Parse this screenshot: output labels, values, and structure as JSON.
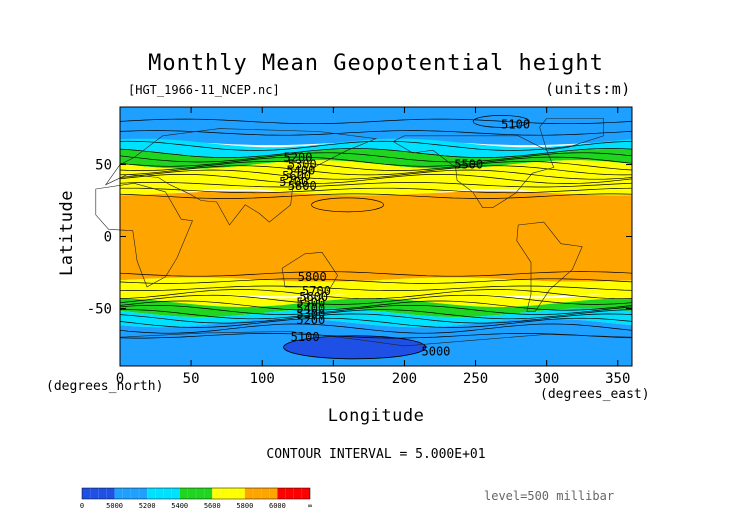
{
  "figure": {
    "title": "Monthly Mean Geopotential height",
    "file_label": "[HGT_1966-11_NCEP.nc]",
    "units_label": "(units:m)",
    "xlabel": "Longitude",
    "ylabel": "Latitude",
    "x_units_label": "(degrees_east)",
    "y_units_label": "(degrees_north)",
    "contour_interval_label": "CONTOUR INTERVAL = 5.000E+01",
    "level_label": "level=500 millibar"
  },
  "chart_data": {
    "type": "heatmap",
    "title": "Monthly Mean Geopotential height",
    "xlabel": "Longitude",
    "ylabel": "Latitude",
    "xlim": [
      0,
      360
    ],
    "ylim": [
      -90,
      90
    ],
    "x_ticks": [
      0,
      50,
      100,
      150,
      200,
      250,
      300,
      350
    ],
    "y_ticks": [
      50,
      0,
      -50
    ],
    "bands": [
      {
        "lat_top": 90,
        "lat_bottom": 65,
        "color": "#1da0ff"
      },
      {
        "lat_top": 65,
        "lat_bottom": 58,
        "color": "#00e0ff"
      },
      {
        "lat_top": 58,
        "lat_bottom": 50,
        "color": "#1fd51f"
      },
      {
        "lat_top": 50,
        "lat_bottom": 38,
        "color": "#ffff00"
      },
      {
        "lat_top": 38,
        "lat_bottom": 30,
        "color": "#ffff00"
      },
      {
        "lat_top": 30,
        "lat_bottom": -30,
        "color": "#ffa500"
      },
      {
        "lat_top": -30,
        "lat_bottom": -40,
        "color": "#ffff00"
      },
      {
        "lat_top": -40,
        "lat_bottom": -46,
        "color": "#ffff00"
      },
      {
        "lat_top": -46,
        "lat_bottom": -53,
        "color": "#1fd51f"
      },
      {
        "lat_top": -53,
        "lat_bottom": -60,
        "color": "#00e0ff"
      },
      {
        "lat_top": -60,
        "lat_bottom": -90,
        "color": "#1da0ff"
      }
    ],
    "low_region": {
      "lon_center": 165,
      "lat_center": -77,
      "lon_radius": 50,
      "lat_radius": 8,
      "color": "#1e50e6"
    },
    "contour_labels": [
      {
        "text": "5200",
        "lon": 115,
        "lat": 55
      },
      {
        "text": "5300",
        "lon": 118,
        "lat": 50
      },
      {
        "text": "5400",
        "lon": 117,
        "lat": 46
      },
      {
        "text": "5500",
        "lon": 235,
        "lat": 50
      },
      {
        "text": "5600",
        "lon": 114,
        "lat": 42
      },
      {
        "text": "5700",
        "lon": 112,
        "lat": 38
      },
      {
        "text": "5800",
        "lon": 118,
        "lat": 35
      },
      {
        "text": "5100",
        "lon": 268,
        "lat": 78
      },
      {
        "text": "5800",
        "lon": 125,
        "lat": -28
      },
      {
        "text": "5700",
        "lon": 128,
        "lat": -38
      },
      {
        "text": "5600",
        "lon": 126,
        "lat": -42
      },
      {
        "text": "5500",
        "lon": 124,
        "lat": -46
      },
      {
        "text": "5400",
        "lon": 124,
        "lat": -50
      },
      {
        "text": "5300",
        "lon": 124,
        "lat": -54
      },
      {
        "text": "5200",
        "lon": 124,
        "lat": -58
      },
      {
        "text": "5100",
        "lon": 120,
        "lat": -70
      },
      {
        "text": "5000",
        "lon": 212,
        "lat": -80
      }
    ],
    "colorbar": {
      "tick_labels": [
        "0",
        "5000",
        "5200",
        "5400",
        "5600",
        "5800",
        "6000",
        "∞"
      ],
      "colors": [
        "#1e50e6",
        "#1da0ff",
        "#00e0ff",
        "#1fd51f",
        "#ffff00",
        "#ffa500",
        "#ff0000"
      ]
    }
  }
}
